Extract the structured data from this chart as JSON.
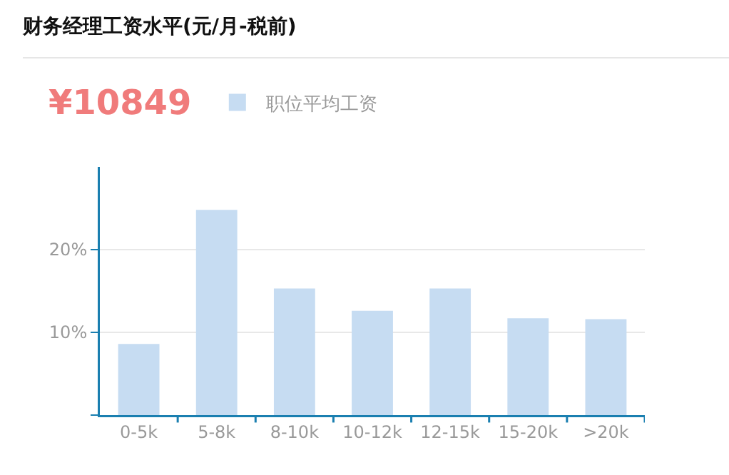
{
  "chart_data": {
    "type": "bar",
    "title": "财务经理工资水平(元/月-税前)",
    "annotations": [
      "¥10849"
    ],
    "categories": [
      "0-5k",
      "5-8k",
      "8-10k",
      "10-12k",
      "12-15k",
      "15-20k",
      ">20k"
    ],
    "series": [
      {
        "name": "职位平均工资",
        "color": "#c6dcf2",
        "values": [
          8.6,
          24.8,
          15.3,
          12.6,
          15.3,
          11.7,
          11.6
        ]
      }
    ],
    "ylim": [
      0,
      30
    ],
    "yticks": [
      {
        "value": 0,
        "label": null
      },
      {
        "value": 10,
        "label": "10%"
      },
      {
        "value": 20,
        "label": "20%"
      }
    ],
    "grid": "y",
    "legend": "top left"
  }
}
